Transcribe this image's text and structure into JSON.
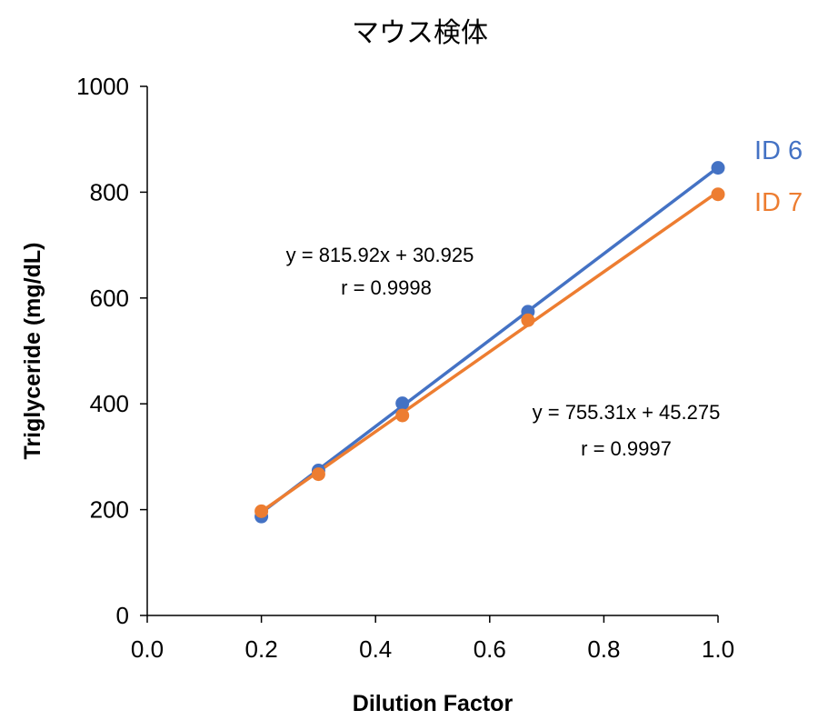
{
  "chart_data": {
    "type": "scatter",
    "title": "マウス検体",
    "xlabel": "Dilution Factor",
    "ylabel": "Triglyceride (mg/dL)",
    "xlim": [
      0.0,
      1.0
    ],
    "ylim": [
      0,
      1000
    ],
    "x_ticks": [
      "0.0",
      "0.2",
      "0.4",
      "0.6",
      "0.8",
      "1.0"
    ],
    "y_ticks": [
      "0",
      "200",
      "400",
      "600",
      "800",
      "1000"
    ],
    "grid": false,
    "legend_position": "right",
    "series": [
      {
        "name": "ID 6",
        "color": "#4472C4",
        "x": [
          0.2,
          0.3,
          0.447,
          0.667,
          1.0
        ],
        "y": [
          187,
          274,
          401,
          574,
          846
        ],
        "trendline": {
          "slope": 815.92,
          "intercept": 30.925
        },
        "equation": "y = 815.92x + 30.925",
        "r_label": "r = 0.9998"
      },
      {
        "name": "ID 7",
        "color": "#ED7D31",
        "x": [
          0.2,
          0.3,
          0.447,
          0.667,
          1.0
        ],
        "y": [
          197,
          267,
          378,
          558,
          796
        ],
        "trendline": {
          "slope": 755.31,
          "intercept": 45.275
        },
        "equation": "y = 755.31x + 45.275",
        "r_label": "r = 0.9997"
      }
    ]
  }
}
